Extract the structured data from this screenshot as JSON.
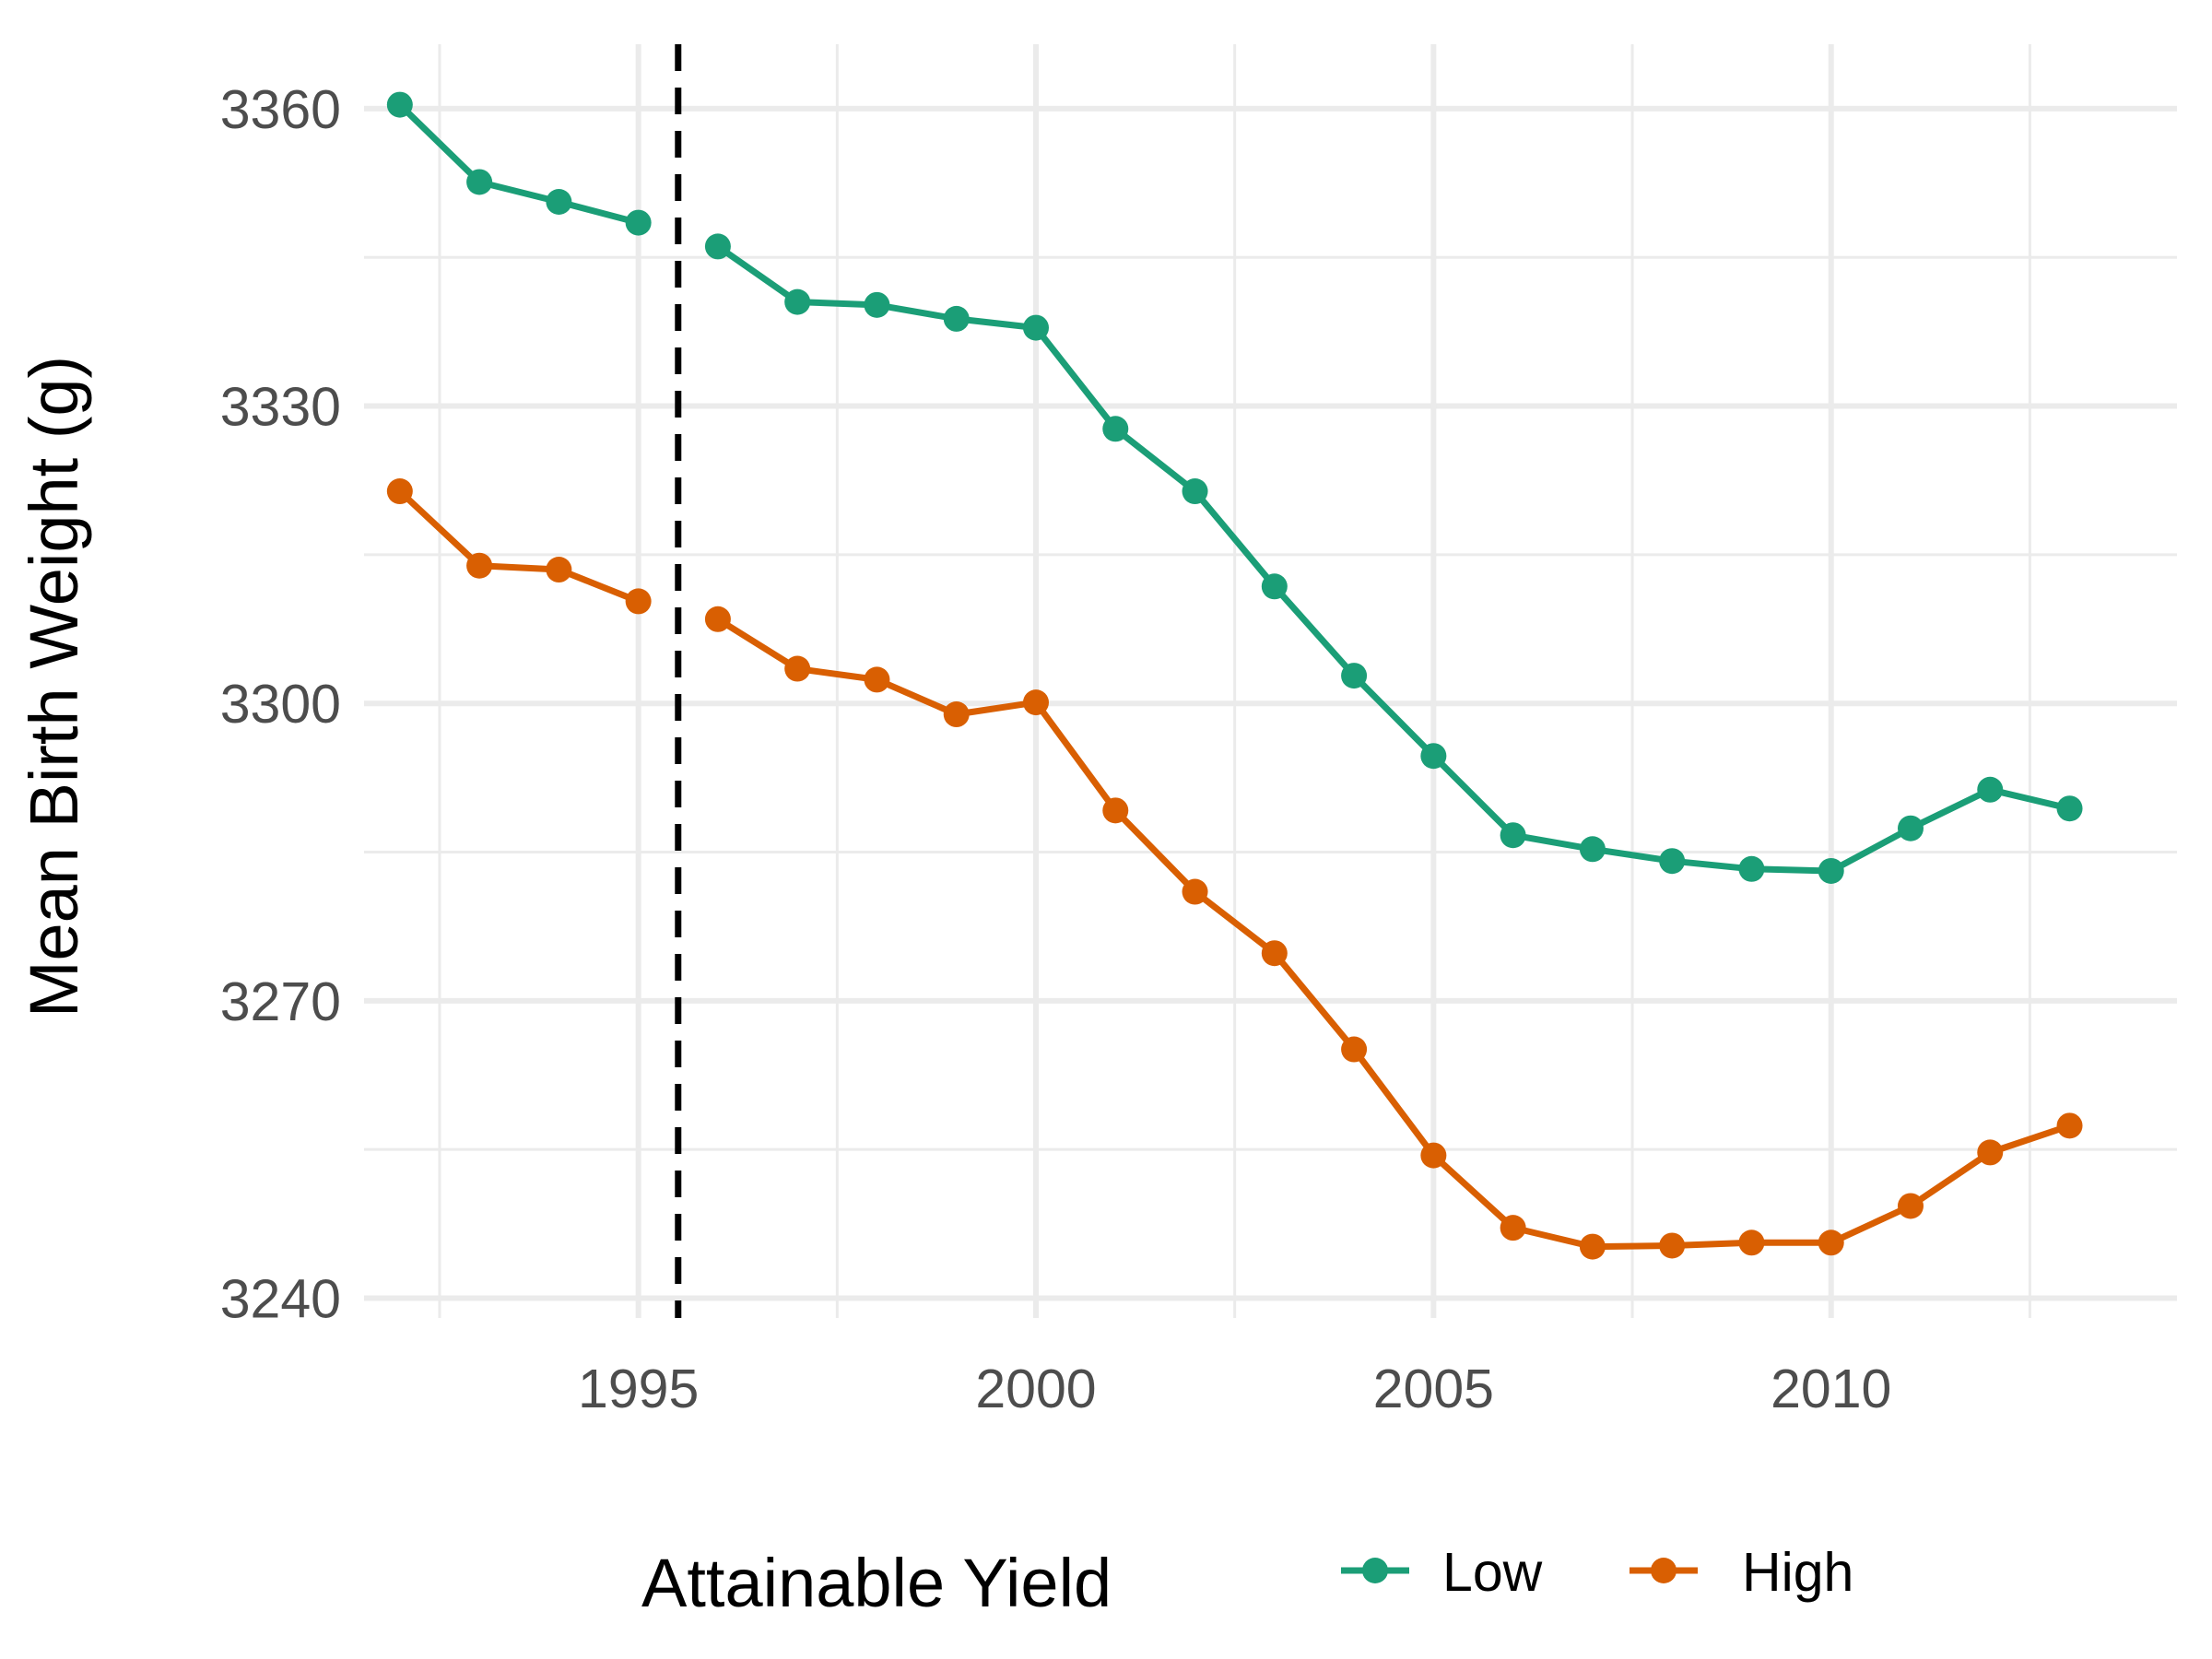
{
  "chart_data": {
    "type": "line",
    "title": "",
    "xlabel": "",
    "ylabel": "Mean Birth Weight (g)",
    "x": [
      1992,
      1993,
      1994,
      1995,
      1996,
      1997,
      1998,
      1999,
      2000,
      2001,
      2002,
      2003,
      2004,
      2005,
      2006,
      2007,
      2008,
      2009,
      2010,
      2011,
      2012,
      2013
    ],
    "series": [
      {
        "name": "Low",
        "color": "#1b9e77",
        "values": [
          3360.4,
          3352.6,
          3350.6,
          3348.5,
          3346.1,
          3340.5,
          3340.2,
          3338.8,
          3337.9,
          3327.7,
          3321.4,
          3311.8,
          3302.8,
          3294.7,
          3286.7,
          3285.3,
          3284.1,
          3283.3,
          3283.1,
          3287.4,
          3291.3,
          3289.4
        ]
      },
      {
        "name": "High",
        "color": "#d95f02",
        "values": [
          3321.4,
          3313.9,
          3313.5,
          3310.3,
          3308.5,
          3303.5,
          3302.4,
          3298.9,
          3300.1,
          3289.2,
          3281.0,
          3274.8,
          3265.1,
          3254.4,
          3247.1,
          3245.2,
          3245.3,
          3245.6,
          3245.6,
          3249.3,
          3254.7,
          3257.4
        ]
      }
    ],
    "xlim": [
      1991.55,
      2014.35
    ],
    "ylim": [
      3238.0,
      3366.5
    ],
    "y_ticks": [
      3240,
      3270,
      3300,
      3330,
      3360
    ],
    "x_ticks": [
      1995,
      2000,
      2005,
      2010
    ],
    "y_tick_labels": [
      "3240",
      "3270",
      "3300",
      "3330",
      "3360"
    ],
    "x_tick_labels": [
      "1995",
      "2000",
      "2005",
      "2010"
    ],
    "vline_x": 1995.5,
    "vline_style": "dashed",
    "grid": true,
    "legend": {
      "title": "Attainable Yield",
      "position": "bottom",
      "entries": [
        "Low",
        "High"
      ]
    }
  }
}
